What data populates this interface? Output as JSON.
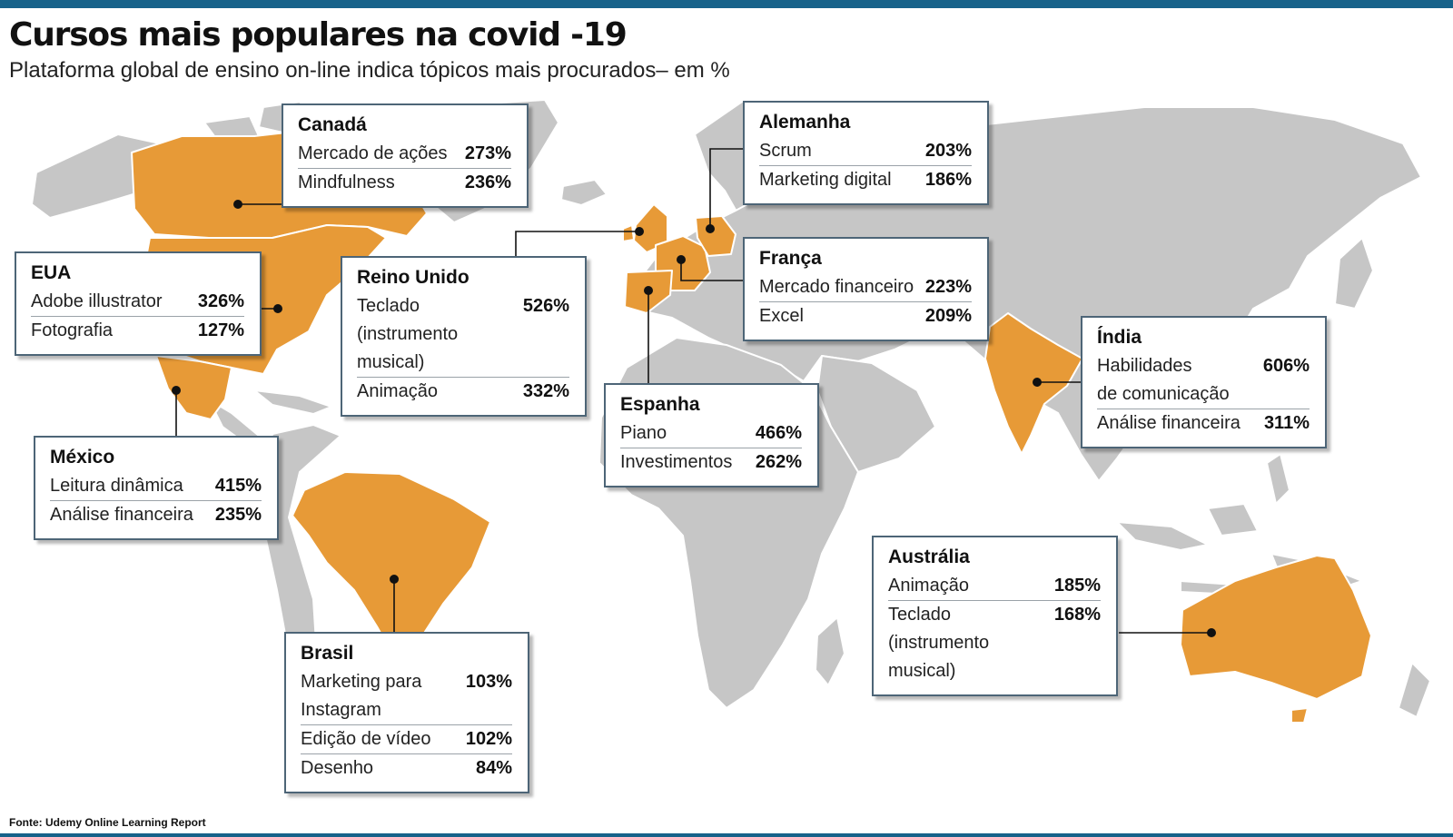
{
  "header": {
    "title": "Cursos mais populares na covid -19",
    "subtitle": "Plataforma global de ensino on-line indica tópicos mais procurados– em %"
  },
  "footer": {
    "source": "Fonte: Udemy Online Learning Report"
  },
  "colors": {
    "highlight": "#e79a37",
    "land": "#c6c6c6",
    "accent_bar": "#17628a",
    "card_border": "#4d6577"
  },
  "countries": [
    {
      "name": "Canadá",
      "courses": [
        {
          "label": [
            "Mercado de ações"
          ],
          "value": "273%"
        },
        {
          "label": [
            "Mindfulness"
          ],
          "value": "236%"
        }
      ]
    },
    {
      "name": "EUA",
      "courses": [
        {
          "label": [
            "Adobe illustrator"
          ],
          "value": "326%"
        },
        {
          "label": [
            "Fotografia"
          ],
          "value": "127%"
        }
      ]
    },
    {
      "name": "México",
      "courses": [
        {
          "label": [
            "Leitura dinâmica"
          ],
          "value": "415%"
        },
        {
          "label": [
            "Análise financeira"
          ],
          "value": "235%"
        }
      ]
    },
    {
      "name": "Brasil",
      "courses": [
        {
          "label": [
            "Marketing para",
            "Instagram"
          ],
          "value": "103%"
        },
        {
          "label": [
            "Edição de vídeo"
          ],
          "value": "102%"
        },
        {
          "label": [
            "Desenho"
          ],
          "value": "84%"
        }
      ]
    },
    {
      "name": "Reino Unido",
      "courses": [
        {
          "label": [
            "Teclado",
            "(instrumento musical)"
          ],
          "value": "526%"
        },
        {
          "label": [
            "Animação"
          ],
          "value": "332%"
        }
      ]
    },
    {
      "name": "Alemanha",
      "courses": [
        {
          "label": [
            "Scrum"
          ],
          "value": "203%"
        },
        {
          "label": [
            "Marketing digital"
          ],
          "value": "186%"
        }
      ]
    },
    {
      "name": "França",
      "courses": [
        {
          "label": [
            "Mercado financeiro"
          ],
          "value": "223%"
        },
        {
          "label": [
            "Excel"
          ],
          "value": "209%"
        }
      ]
    },
    {
      "name": "Espanha",
      "courses": [
        {
          "label": [
            "Piano"
          ],
          "value": "466%"
        },
        {
          "label": [
            "Investimentos"
          ],
          "value": "262%"
        }
      ]
    },
    {
      "name": "Índia",
      "courses": [
        {
          "label": [
            "Habilidades",
            "de comunicação"
          ],
          "value": "606%"
        },
        {
          "label": [
            "Análise financeira"
          ],
          "value": "311%"
        }
      ]
    },
    {
      "name": "Austrália",
      "courses": [
        {
          "label": [
            "Animação"
          ],
          "value": "185%"
        },
        {
          "label": [
            "Teclado",
            "(instrumento musical)"
          ],
          "value": "168%"
        }
      ]
    }
  ]
}
